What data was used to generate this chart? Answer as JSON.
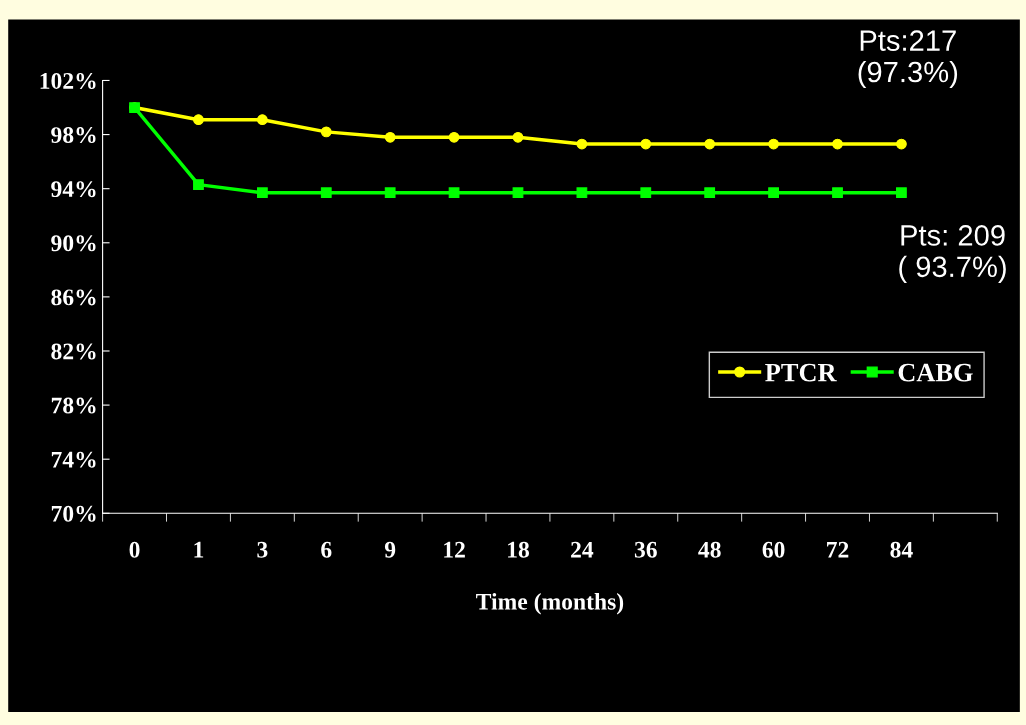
{
  "chart_data": {
    "type": "line",
    "xlabel": "Time (months)",
    "categories": [
      "0",
      "1",
      "3",
      "6",
      "9",
      "12",
      "18",
      "24",
      "36",
      "48",
      "60",
      "72",
      "84",
      null
    ],
    "series": [
      {
        "name": "PTCR",
        "color": "#ffff00",
        "marker": "circle",
        "values": [
          100,
          99.1,
          99.1,
          98.2,
          97.8,
          97.8,
          97.8,
          97.3,
          97.3,
          97.3,
          97.3,
          97.3,
          97.3,
          null
        ]
      },
      {
        "name": "CABG",
        "color": "#00ff00",
        "marker": "square",
        "values": [
          100,
          94.3,
          93.7,
          93.7,
          93.7,
          93.7,
          93.7,
          93.7,
          93.7,
          93.7,
          93.7,
          93.7,
          93.7,
          null
        ]
      }
    ],
    "ylim": [
      70,
      102
    ],
    "yticks": [
      {
        "value": 70,
        "label": "70%"
      },
      {
        "value": 74,
        "label": "74%"
      },
      {
        "value": 78,
        "label": "78%"
      },
      {
        "value": 82,
        "label": "82%"
      },
      {
        "value": 86,
        "label": "86%"
      },
      {
        "value": 90,
        "label": "90%"
      },
      {
        "value": 94,
        "label": "94%"
      },
      {
        "value": 98,
        "label": "98%"
      },
      {
        "value": 102,
        "label": "102%"
      }
    ],
    "annotations": [
      "Pts:217\n(97.3%)",
      "Pts: 209\n( 93.7%)"
    ],
    "legend": "right",
    "grid": false
  }
}
